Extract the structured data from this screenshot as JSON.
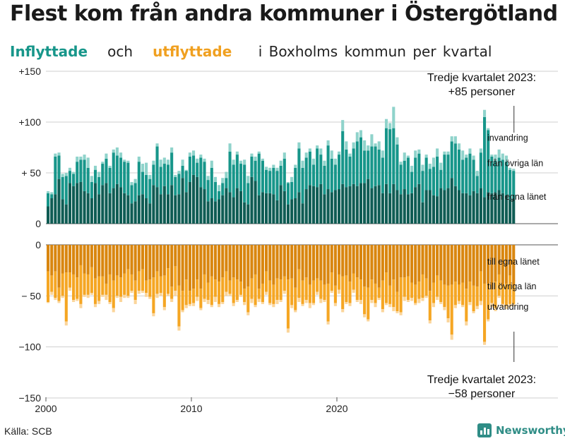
{
  "title": "Flest kom från andra kommuner i Östergötland",
  "subtitle": {
    "in_word": "Inflyttade",
    "och": "och",
    "out_word": "utflyttade",
    "rest": "i Boxholms  kommun  per  kvartal"
  },
  "source": "Källa: SCB",
  "brand": "Newsworthy",
  "colors": {
    "in_own": "#0f5c54",
    "in_other": "#17968a",
    "in_immig": "#8fd3cb",
    "out_own": "#d9860f",
    "out_other": "#f5a623",
    "out_emig": "#fbd59a"
  },
  "chart_data": {
    "type": "bar",
    "stacked": true,
    "x_start": 2000,
    "quarters_per_year": 4,
    "xticks": [
      {
        "year": 2000,
        "label": "2000"
      },
      {
        "year": 2010,
        "label": "2010"
      },
      {
        "year": 2020,
        "label": "2020"
      }
    ],
    "top_panel": {
      "ylim": [
        0,
        150
      ],
      "ticks": [
        {
          "v": 0,
          "label": "0"
        },
        {
          "v": 50,
          "label": "+ 50"
        },
        {
          "v": 100,
          "label": "+100"
        },
        {
          "v": 150,
          "label": "+150"
        }
      ],
      "series": [
        {
          "name": "från egna länet",
          "values": [
            17,
            25,
            29,
            44,
            24,
            19,
            40,
            37,
            40,
            41,
            32,
            30,
            25,
            40,
            29,
            38,
            40,
            30,
            35,
            39,
            36,
            30,
            28,
            20,
            22,
            28,
            29,
            25,
            20,
            38,
            36,
            29,
            37,
            29,
            38,
            28,
            29,
            45,
            31,
            41,
            48,
            46,
            36,
            34,
            22,
            25,
            22,
            24,
            28,
            35,
            31,
            26,
            35,
            32,
            21,
            19,
            46,
            42,
            28,
            31,
            30,
            30,
            29,
            23,
            38,
            32,
            19,
            24,
            25,
            31,
            20,
            34,
            38,
            37,
            36,
            39,
            29,
            34,
            31,
            33,
            34,
            39,
            36,
            37,
            39,
            37,
            40,
            40,
            44,
            35,
            37,
            38,
            30,
            39,
            30,
            39,
            33,
            29,
            34,
            29,
            30,
            36,
            39,
            21,
            33,
            33,
            28,
            27,
            35,
            33,
            35,
            45,
            37,
            33,
            30,
            30,
            28,
            32,
            30,
            35,
            26,
            31,
            30,
            30,
            33,
            30,
            28,
            24,
            24
          ]
        },
        {
          "name": "från övriga län",
          "values": [
            13,
            4,
            37,
            23,
            22,
            28,
            12,
            12,
            21,
            22,
            31,
            25,
            16,
            13,
            17,
            21,
            24,
            25,
            35,
            28,
            29,
            31,
            32,
            18,
            18,
            33,
            22,
            23,
            24,
            20,
            40,
            27,
            22,
            29,
            32,
            18,
            20,
            12,
            21,
            25,
            19,
            14,
            29,
            27,
            21,
            30,
            19,
            8,
            12,
            10,
            40,
            32,
            33,
            27,
            37,
            21,
            20,
            20,
            41,
            31,
            23,
            22,
            26,
            29,
            19,
            32,
            21,
            17,
            30,
            43,
            35,
            31,
            33,
            21,
            38,
            29,
            28,
            43,
            33,
            25,
            34,
            52,
            37,
            29,
            35,
            44,
            45,
            32,
            28,
            41,
            39,
            35,
            35,
            55,
            63,
            55,
            45,
            29,
            28,
            36,
            21,
            29,
            30,
            31,
            32,
            21,
            28,
            39,
            18,
            35,
            33,
            36,
            42,
            40,
            33,
            35,
            41,
            31,
            17,
            35,
            79,
            61,
            36,
            32,
            32,
            33,
            33,
            29,
            28
          ]
        },
        {
          "name": "invandring",
          "values": [
            2,
            2,
            3,
            3,
            3,
            3,
            3,
            2,
            5,
            3,
            5,
            10,
            6,
            4,
            5,
            2,
            5,
            2,
            3,
            8,
            5,
            2,
            2,
            3,
            4,
            5,
            8,
            12,
            4,
            4,
            3,
            7,
            6,
            5,
            5,
            2,
            3,
            6,
            1,
            4,
            5,
            4,
            3,
            3,
            4,
            7,
            5,
            6,
            5,
            6,
            8,
            5,
            3,
            3,
            5,
            7,
            3,
            4,
            2,
            2,
            3,
            3,
            3,
            3,
            5,
            6,
            1,
            5,
            3,
            6,
            7,
            5,
            3,
            6,
            3,
            6,
            5,
            5,
            8,
            6,
            3,
            11,
            8,
            3,
            6,
            9,
            7,
            10,
            5,
            12,
            3,
            8,
            7,
            9,
            6,
            21,
            7,
            3,
            8,
            2,
            6,
            7,
            4,
            6,
            3,
            5,
            9,
            8,
            7,
            3,
            3,
            5,
            7,
            6,
            9,
            3,
            5,
            4,
            5,
            4,
            7,
            2,
            2,
            6,
            8,
            6,
            6,
            2,
            2
          ]
        }
      ]
    },
    "bottom_panel": {
      "ylim": [
        -150,
        0
      ],
      "ticks": [
        {
          "v": 0,
          "label": "0"
        },
        {
          "v": -50,
          "label": "− 50"
        },
        {
          "v": -100,
          "label": "−100"
        },
        {
          "v": -150,
          "label": "−150"
        }
      ],
      "series": [
        {
          "name": "till egna länet",
          "values": [
            -26,
            -30,
            -26,
            -42,
            -28,
            -27,
            -27,
            -29,
            -32,
            -20,
            -28,
            -29,
            -22,
            -33,
            -31,
            -31,
            -38,
            -29,
            -35,
            -30,
            -32,
            -28,
            -24,
            -29,
            -35,
            -26,
            -24,
            -35,
            -34,
            -32,
            -26,
            -31,
            -30,
            -23,
            -41,
            -21,
            -40,
            -45,
            -34,
            -45,
            -43,
            -34,
            -43,
            -29,
            -37,
            -31,
            -34,
            -36,
            -32,
            -26,
            -35,
            -32,
            -34,
            -36,
            -43,
            -41,
            -33,
            -29,
            -43,
            -38,
            -26,
            -35,
            -39,
            -33,
            -34,
            -31,
            -34,
            -33,
            -42,
            -24,
            -35,
            -32,
            -39,
            -35,
            -33,
            -35,
            -39,
            -38,
            -27,
            -40,
            -29,
            -31,
            -30,
            -36,
            -28,
            -32,
            -34,
            -41,
            -42,
            -34,
            -38,
            -42,
            -35,
            -27,
            -40,
            -34,
            -46,
            -32,
            -32,
            -31,
            -37,
            -39,
            -36,
            -29,
            -33,
            -45,
            -37,
            -30,
            -35,
            -39,
            -40,
            -39,
            -36,
            -39,
            -37,
            -43,
            -36,
            -40,
            -41,
            -26,
            -38,
            -38,
            -44,
            -36,
            -29,
            -40,
            -38,
            -30,
            -40
          ]
        },
        {
          "name": "till övriga län",
          "values": [
            -30,
            -16,
            -26,
            -13,
            -22,
            -48,
            -15,
            -25,
            -21,
            -38,
            -21,
            -20,
            -25,
            -25,
            -24,
            -18,
            -11,
            -27,
            -27,
            -20,
            -19,
            -21,
            -26,
            -16,
            -19,
            -19,
            -21,
            -12,
            -17,
            -35,
            -22,
            -16,
            -31,
            -25,
            -12,
            -24,
            -40,
            -19,
            -25,
            -13,
            -14,
            -17,
            -19,
            -24,
            -17,
            -28,
            -17,
            -22,
            -24,
            -20,
            -13,
            -25,
            -20,
            -13,
            -13,
            -25,
            -20,
            -30,
            -10,
            -18,
            -20,
            -22,
            -19,
            -21,
            -20,
            -14,
            -48,
            -26,
            -22,
            -28,
            -23,
            -22,
            -18,
            -22,
            -13,
            -18,
            -15,
            -37,
            -18,
            -17,
            -15,
            -32,
            -26,
            -21,
            -16,
            -22,
            -20,
            -27,
            -31,
            -20,
            -19,
            -10,
            -28,
            -30,
            -18,
            -27,
            -19,
            -34,
            -19,
            -23,
            -15,
            -18,
            -17,
            -23,
            -17,
            -29,
            -20,
            -21,
            -21,
            -22,
            -32,
            -49,
            -23,
            -16,
            -22,
            -32,
            -20,
            -25,
            -19,
            -29,
            -57,
            -35,
            -13,
            -26,
            -21,
            -18,
            -21,
            -28,
            -18
          ]
        },
        {
          "name": "utvandring",
          "values": [
            -1,
            -3,
            -2,
            -2,
            -2,
            -4,
            -3,
            -2,
            -2,
            -4,
            -2,
            -3,
            -2,
            -3,
            -3,
            -2,
            -5,
            -2,
            -4,
            -2,
            -5,
            -3,
            -2,
            -2,
            -4,
            -3,
            -2,
            -4,
            -2,
            -3,
            -4,
            -3,
            -3,
            -2,
            -3,
            -5,
            -4,
            -2,
            -3,
            -2,
            -3,
            -4,
            -2,
            -3,
            -4,
            -2,
            -5,
            -3,
            -2,
            -4,
            -2,
            -3,
            -2,
            -2,
            -3,
            -3,
            -4,
            -2,
            -3,
            -2,
            -3,
            -2,
            -3,
            -4,
            -2,
            -3,
            -4,
            -3,
            -2,
            -4,
            -2,
            -3,
            -5,
            -2,
            -3,
            -4,
            -2,
            -3,
            -2,
            -3,
            -4,
            -3,
            -2,
            -3,
            -3,
            -2,
            -4,
            -3,
            -2,
            -3,
            -4,
            -2,
            -3,
            -2,
            -3,
            -4,
            -2,
            -3,
            -4,
            -2,
            -3,
            -2,
            -4,
            -3,
            -2,
            -3,
            -4,
            -3,
            -2,
            -3,
            -4,
            -5,
            -3,
            -3,
            -2,
            -4,
            -3,
            -2,
            -3,
            -4,
            -3,
            -2,
            -4,
            -3,
            -2,
            -3,
            -4,
            -3,
            -2
          ]
        }
      ]
    },
    "annotations": {
      "top_line1": "Tredje kvartalet 2023:",
      "top_line2": "+85 personer",
      "bottom_line1": "Tredje kvartalet 2023:",
      "bottom_line2": "−58 personer",
      "top_labels": [
        {
          "text": "invandring",
          "at": 85
        },
        {
          "text": "från övriga län",
          "at": 60
        },
        {
          "text": "från egna länet",
          "at": 27
        }
      ],
      "bottom_labels": [
        {
          "text": "till egna länet",
          "at": -16
        },
        {
          "text": "till övriga län",
          "at": -40
        },
        {
          "text": "utvandring",
          "at": -60
        }
      ]
    }
  }
}
